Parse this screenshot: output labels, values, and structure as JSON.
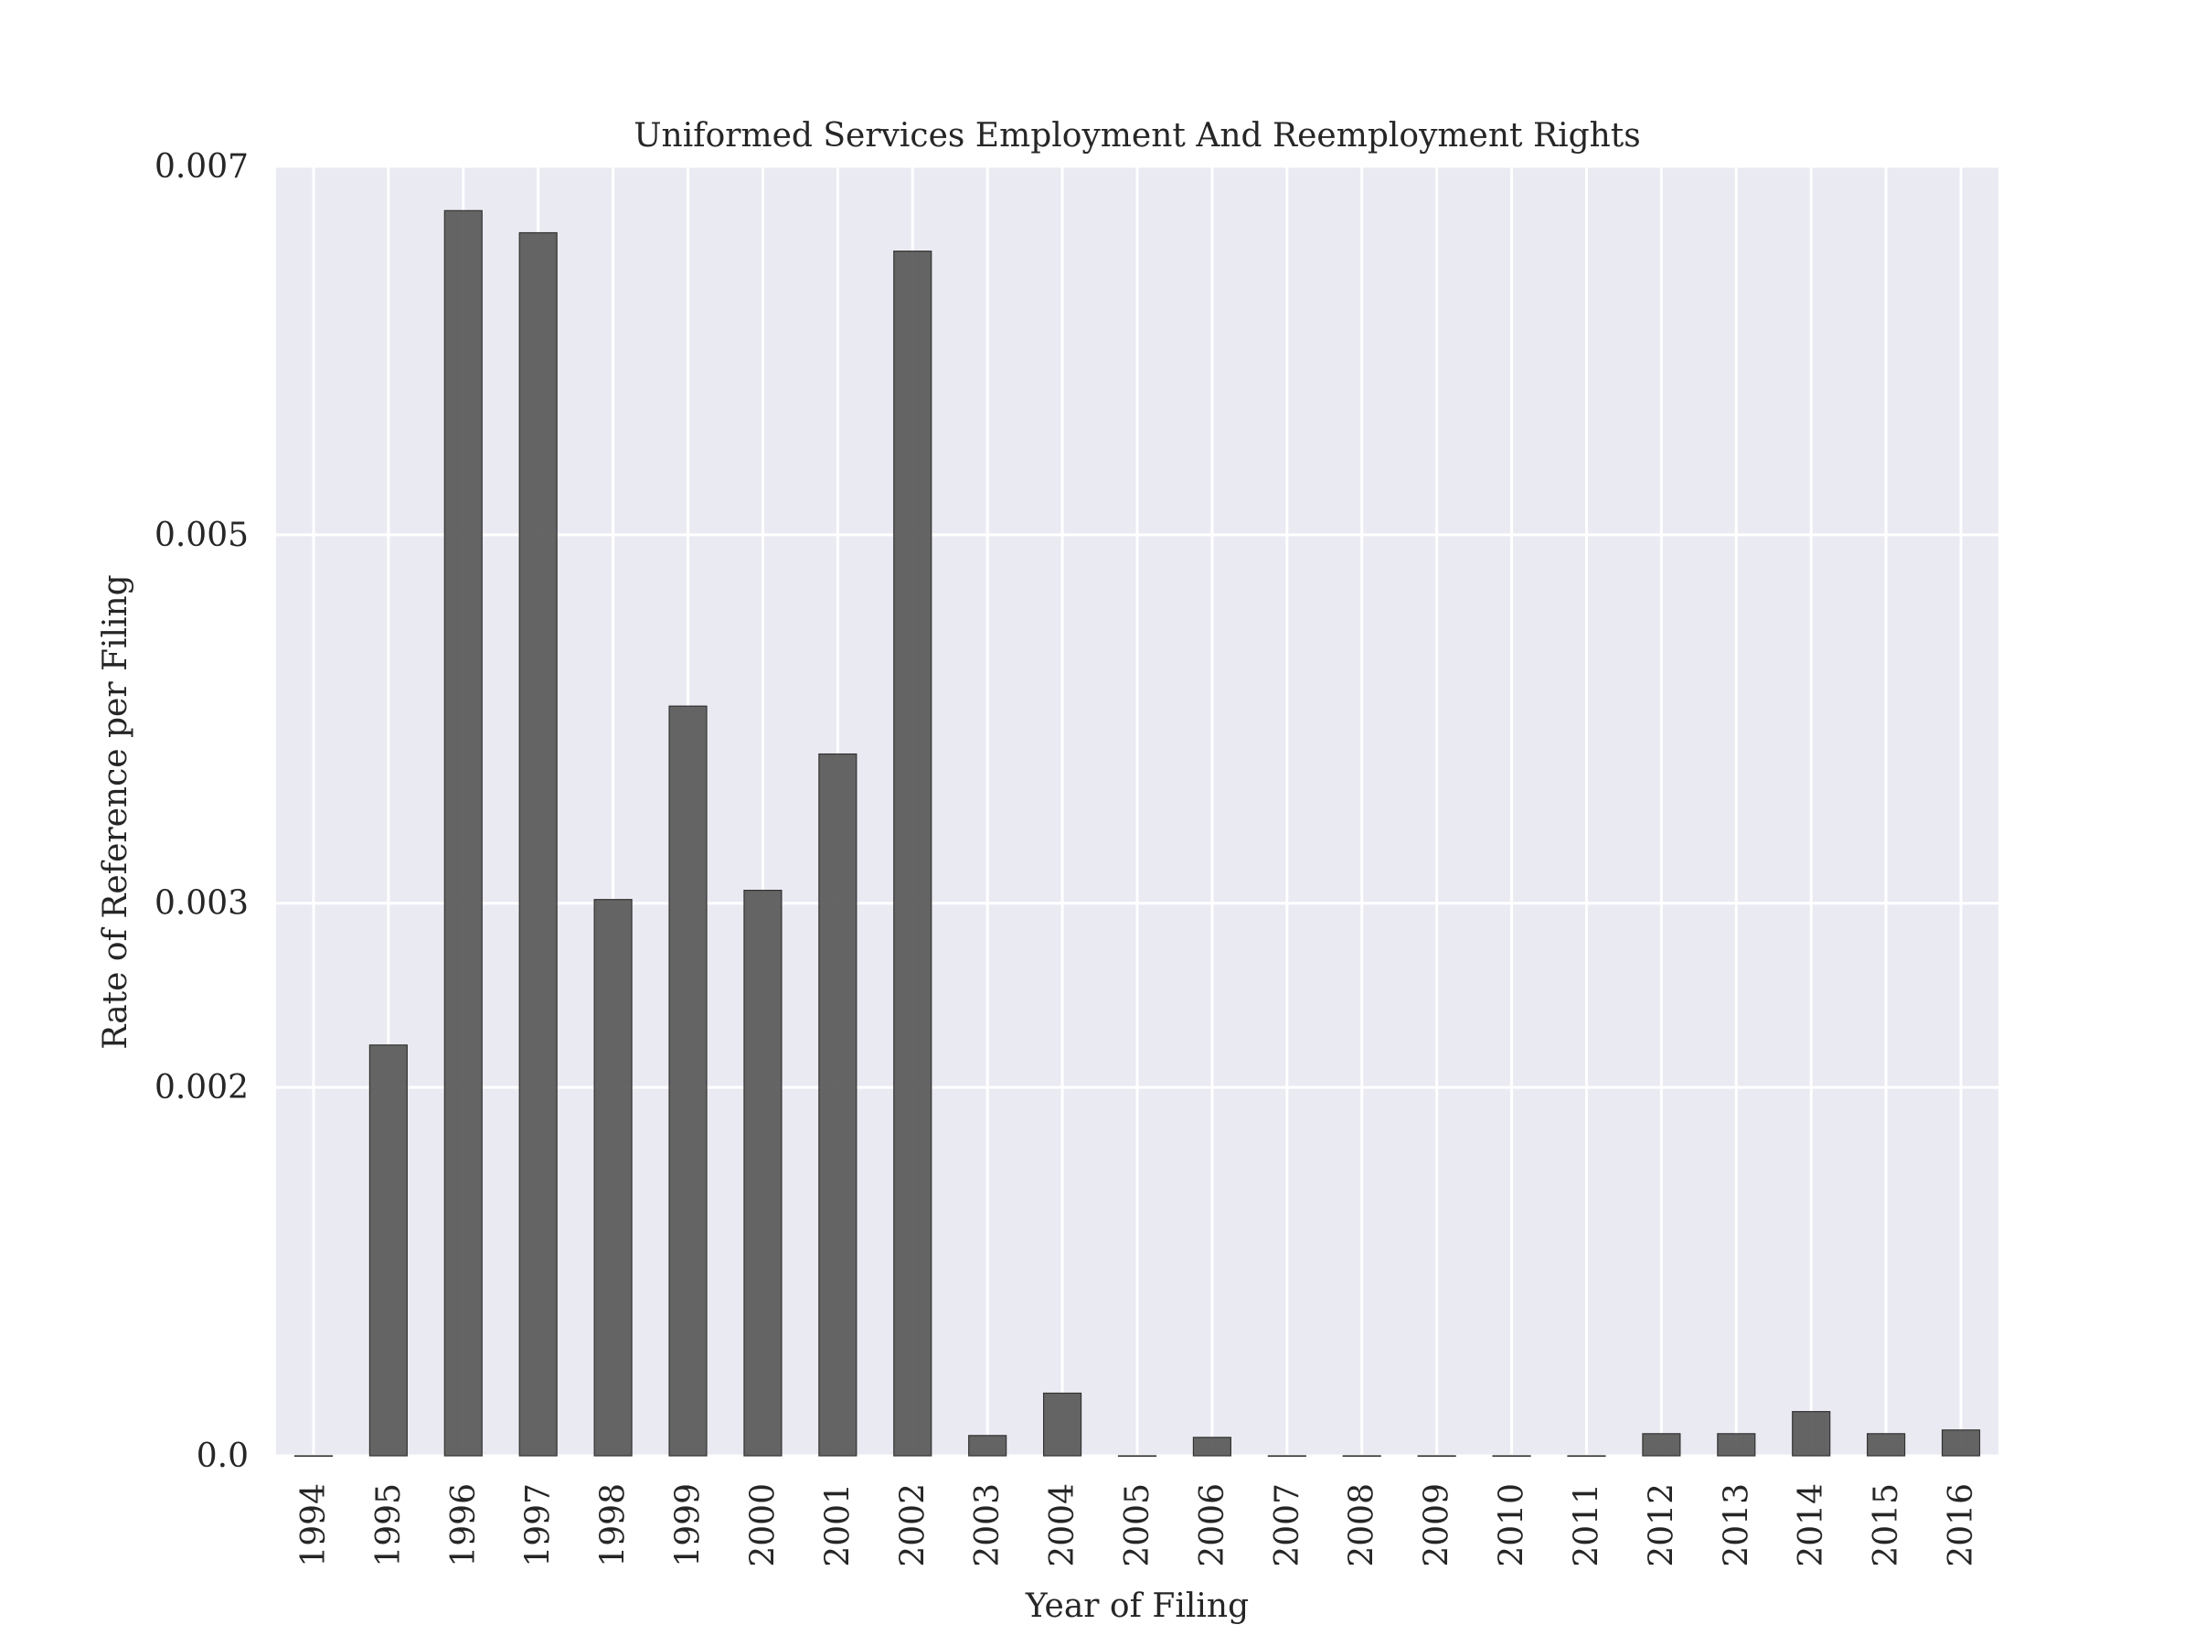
{
  "chart_data": {
    "type": "bar",
    "title": "Uniformed Services Employment And Reemployment Rights",
    "xlabel": "Year of Filing",
    "ylabel": "Rate of Reference per Filing",
    "categories": [
      "1994",
      "1995",
      "1996",
      "1997",
      "1998",
      "1999",
      "2000",
      "2001",
      "2002",
      "2003",
      "2004",
      "2005",
      "2006",
      "2007",
      "2008",
      "2009",
      "2010",
      "2011",
      "2012",
      "2013",
      "2014",
      "2015",
      "2016"
    ],
    "values": [
      0.0,
      0.00223,
      0.00676,
      0.00664,
      0.00302,
      0.00407,
      0.00307,
      0.00381,
      0.00654,
      0.00011,
      0.00034,
      0.0,
      0.0001,
      0.0,
      0.0,
      0.0,
      0.0,
      0.0,
      0.00012,
      0.00012,
      0.00024,
      0.00012,
      0.00014
    ],
    "ylim": [
      0,
      0.007
    ],
    "yticks": [
      0.0,
      0.002,
      0.003,
      0.005,
      0.007
    ],
    "ytick_labels": [
      "0.0",
      "0.002",
      "0.003",
      "0.005",
      "0.007"
    ],
    "grid": true,
    "bar_color": "#595959",
    "background_color": "#eaeaf2"
  }
}
